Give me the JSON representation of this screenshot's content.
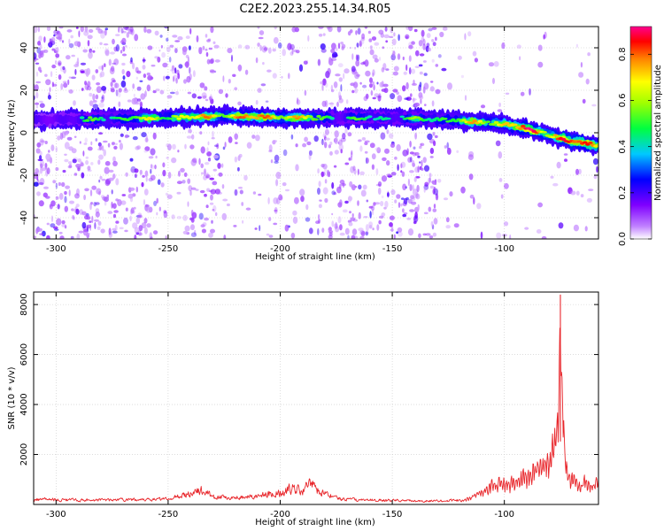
{
  "title": "C2E2.2023.255.14.34.R05",
  "chart_data": [
    {
      "type": "heatmap",
      "xlabel": "Height of straight line (km)",
      "ylabel": "Frequency (Hz)",
      "xlim": [
        -310,
        -58
      ],
      "ylim": [
        -50,
        50
      ],
      "x_ticks": [
        -300,
        -250,
        -200,
        -150,
        -100
      ],
      "x_tick_labels": [
        "-300",
        "-250",
        "-200",
        "-150",
        "-100"
      ],
      "y_ticks": [
        -40,
        -20,
        0,
        20,
        40
      ],
      "y_tick_labels": [
        "-40",
        "-20",
        "0",
        "20",
        "40"
      ],
      "grid": true,
      "colorbar": {
        "label": "Normalized spectral amplitude",
        "range": [
          0,
          0.92
        ],
        "ticks": [
          0,
          0.2,
          0.4,
          0.6,
          0.8
        ],
        "tick_labels": [
          "0.0",
          "0.2",
          "0.4",
          "0.6",
          "0.8"
        ],
        "colormap": [
          "#ffffff",
          "#7f00ff",
          "#0000ff",
          "#00ffff",
          "#00ff00",
          "#ffff00",
          "#ff0000",
          "#ff00aa"
        ]
      },
      "ridge": {
        "description": "dominant frequency band vs height",
        "x": [
          -310,
          -250,
          -225,
          -200,
          -175,
          -150,
          -125,
          -110,
          -100,
          -90,
          -80,
          -70,
          -58
        ],
        "y": [
          6,
          7,
          8,
          7,
          7,
          7,
          6,
          5,
          4,
          2,
          -1,
          -4,
          -6
        ],
        "peak_amplitude": [
          0.35,
          0.7,
          0.8,
          0.85,
          0.5,
          0.5,
          0.6,
          0.75,
          0.8,
          0.88,
          0.9,
          0.92,
          0.8
        ]
      }
    },
    {
      "type": "line",
      "xlabel": "Height of straight line (km)",
      "ylabel": "SNR (10 * v/v)",
      "xlim": [
        -310,
        -58
      ],
      "ylim": [
        0,
        8500
      ],
      "x_ticks": [
        -300,
        -250,
        -200,
        -150,
        -100
      ],
      "x_tick_labels": [
        "-300",
        "-250",
        "-200",
        "-150",
        "-100"
      ],
      "y_ticks": [
        2000,
        4000,
        6000,
        8000
      ],
      "y_tick_labels": [
        "2000",
        "4000",
        "6000",
        "8000"
      ],
      "grid": true,
      "color": "#e8262b",
      "series": [
        {
          "x": [
            -310,
            -290,
            -270,
            -250,
            -240,
            -235,
            -230,
            -220,
            -210,
            -200,
            -195,
            -190,
            -187,
            -183,
            -175,
            -165,
            -150,
            -140,
            -130,
            -125,
            -120,
            -115,
            -110,
            -105,
            -100,
            -95,
            -90,
            -85,
            -82,
            -80,
            -78,
            -76,
            -75,
            -74,
            -73,
            -72,
            -70,
            -67,
            -64,
            -60,
            -58
          ],
          "y": [
            250,
            200,
            220,
            250,
            500,
            700,
            350,
            320,
            420,
            550,
            750,
            650,
            1050,
            600,
            300,
            200,
            200,
            160,
            170,
            180,
            200,
            350,
            700,
            1100,
            1200,
            1300,
            1600,
            2000,
            2500,
            2000,
            3500,
            5500,
            8400,
            5700,
            2500,
            1800,
            1500,
            1100,
            1300,
            1000,
            1400
          ]
        }
      ]
    }
  ]
}
